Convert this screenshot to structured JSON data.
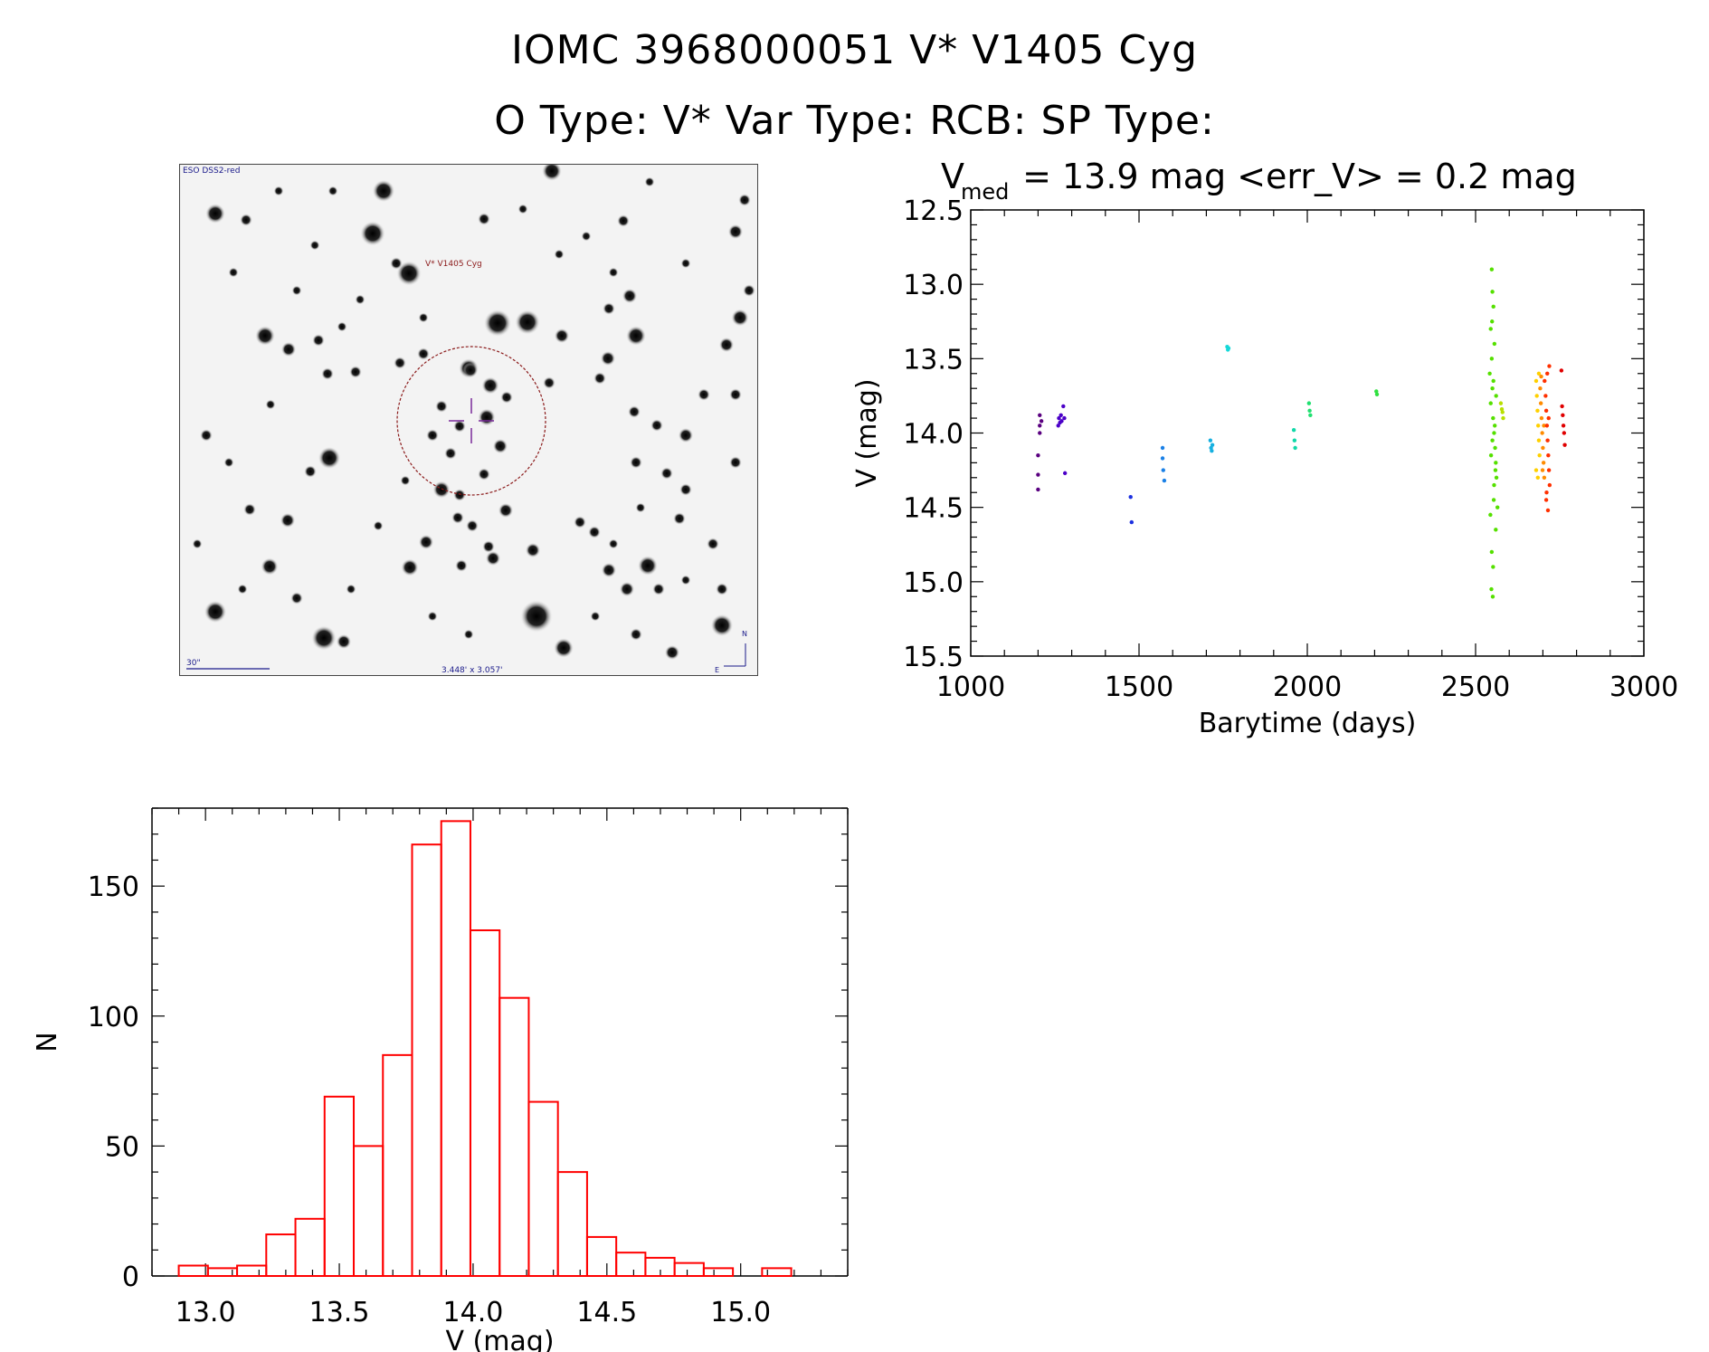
{
  "header": {
    "title1": "IOMC 3968000051    V* V1405 Cyg",
    "title2": "O Type: V*  Var Type: RCB:  SP Type:"
  },
  "image_panel": {
    "survey_label": "ESO DSS2-red",
    "target_label": "V* V1405 Cyg",
    "scale_label": "30\"",
    "fov_label": "3.448' x 3.057'",
    "north_label": "N",
    "east_label": "E",
    "marker_color": "#8b1a1a",
    "crosshair_color": "#7a2a9a"
  },
  "chart_data": [
    {
      "type": "scatter",
      "title_main": "V",
      "title_sub": "med",
      "title_rest": " = 13.9 mag <err_V> = 0.2 mag",
      "xlabel": "Barytime (days)",
      "ylabel": "V (mag)",
      "xlim": [
        1000,
        3000
      ],
      "ylim": [
        15.5,
        12.5
      ],
      "y_inverted": true,
      "xticks": [
        1000,
        1500,
        2000,
        2500,
        3000
      ],
      "xtick_labels": [
        "1000",
        "1500",
        "2000",
        "2500",
        "3000"
      ],
      "yticks": [
        12.5,
        13.0,
        13.5,
        14.0,
        14.5,
        15.0,
        15.5
      ],
      "ytick_labels": [
        "12.5",
        "13.0",
        "13.5",
        "14.0",
        "14.5",
        "15.0",
        "15.5"
      ],
      "grid": false,
      "colormap": "rainbow by time (purple to red)",
      "series": [
        {
          "color": "#5a0080",
          "x": [
            1200,
            1200,
            1200,
            1205,
            1205,
            1205,
            1210
          ],
          "y": [
            14.15,
            14.28,
            14.38,
            13.88,
            13.95,
            14.0,
            13.92
          ]
        },
        {
          "color": "#4b00c8",
          "x": [
            1260,
            1262,
            1265,
            1268,
            1270,
            1275,
            1278,
            1280
          ],
          "y": [
            13.95,
            13.9,
            13.93,
            13.88,
            13.92,
            13.82,
            13.9,
            14.27
          ]
        },
        {
          "color": "#1c30e0",
          "x": [
            1475,
            1478
          ],
          "y": [
            14.43,
            14.6
          ]
        },
        {
          "color": "#1a80e6",
          "x": [
            1570,
            1570,
            1572,
            1575
          ],
          "y": [
            14.1,
            14.17,
            14.25,
            14.32
          ]
        },
        {
          "color": "#16b0e0",
          "x": [
            1712,
            1714,
            1716,
            1718
          ],
          "y": [
            14.05,
            14.1,
            14.12,
            14.08
          ]
        },
        {
          "color": "#15d8d8",
          "x": [
            1762,
            1764,
            1766
          ],
          "y": [
            13.42,
            13.44,
            13.43
          ]
        },
        {
          "color": "#10d8a8",
          "x": [
            1960,
            1962,
            1964
          ],
          "y": [
            13.98,
            14.05,
            14.1
          ]
        },
        {
          "color": "#20e070",
          "x": [
            2005,
            2007,
            2009
          ],
          "y": [
            13.8,
            13.85,
            13.88
          ]
        },
        {
          "color": "#30e040",
          "x": [
            2205,
            2207
          ],
          "y": [
            13.72,
            13.74
          ]
        },
        {
          "color": "#55e000",
          "x": [
            2545,
            2548,
            2550,
            2552,
            2555,
            2558,
            2560,
            2562,
            2565,
            2548,
            2550,
            2553,
            2556,
            2542,
            2545,
            2550,
            2555,
            2560,
            2548,
            2552,
            2547,
            2551,
            2554,
            2549,
            2553,
            2546,
            2557,
            2561,
            2544,
            2559
          ],
          "y": [
            13.3,
            13.5,
            13.7,
            13.9,
            14.0,
            14.1,
            14.2,
            14.3,
            14.5,
            12.9,
            13.05,
            13.15,
            13.4,
            13.6,
            13.8,
            14.05,
            14.35,
            14.65,
            14.8,
            14.9,
            15.05,
            15.1,
            14.45,
            13.25,
            13.65,
            14.15,
            13.95,
            13.75,
            14.55,
            14.25
          ]
        },
        {
          "color": "#b8e000",
          "x": [
            2575,
            2578,
            2580,
            2582
          ],
          "y": [
            13.8,
            13.84,
            13.86,
            13.9
          ]
        },
        {
          "color": "#ffd000",
          "x": [
            2680,
            2682,
            2684,
            2686,
            2688,
            2690,
            2680,
            2685,
            2688
          ],
          "y": [
            13.65,
            13.75,
            13.85,
            13.95,
            14.05,
            14.15,
            14.25,
            14.3,
            13.6
          ]
        },
        {
          "color": "#ff8c00",
          "x": [
            2692,
            2694,
            2696,
            2698,
            2700,
            2702,
            2704,
            2695,
            2699,
            2703
          ],
          "y": [
            13.7,
            13.8,
            13.9,
            14.0,
            14.1,
            14.2,
            14.3,
            13.62,
            14.25,
            13.95
          ]
        },
        {
          "color": "#ff3000",
          "x": [
            2705,
            2708,
            2710,
            2712,
            2714,
            2716,
            2718,
            2720,
            2710,
            2715,
            2719,
            2713,
            2711,
            2717
          ],
          "y": [
            13.65,
            13.75,
            13.85,
            13.95,
            14.05,
            14.15,
            14.25,
            14.35,
            14.45,
            14.52,
            13.55,
            13.6,
            14.4,
            13.9
          ]
        },
        {
          "color": "#e00000",
          "x": [
            2755,
            2757,
            2759,
            2761,
            2763,
            2765
          ],
          "y": [
            13.58,
            13.82,
            13.88,
            13.95,
            14.0,
            14.08
          ]
        }
      ]
    },
    {
      "type": "bar",
      "subtype": "histogram",
      "xlabel": "V (mag)",
      "ylabel": "N",
      "xlim": [
        12.8,
        15.4
      ],
      "ylim": [
        0,
        180
      ],
      "xticks": [
        13.0,
        13.5,
        14.0,
        14.5,
        15.0
      ],
      "xtick_labels": [
        "13.0",
        "13.5",
        "14.0",
        "14.5",
        "15.0"
      ],
      "yticks": [
        0,
        50,
        100,
        150
      ],
      "ytick_labels": [
        "0",
        "50",
        "100",
        "150"
      ],
      "bin_width": 0.109,
      "bin_start": 12.9,
      "values": [
        4,
        3,
        4,
        16,
        22,
        69,
        50,
        85,
        166,
        175,
        133,
        107,
        67,
        40,
        15,
        9,
        7,
        5,
        3,
        0,
        3
      ],
      "bar_color": "#ff0000"
    }
  ]
}
